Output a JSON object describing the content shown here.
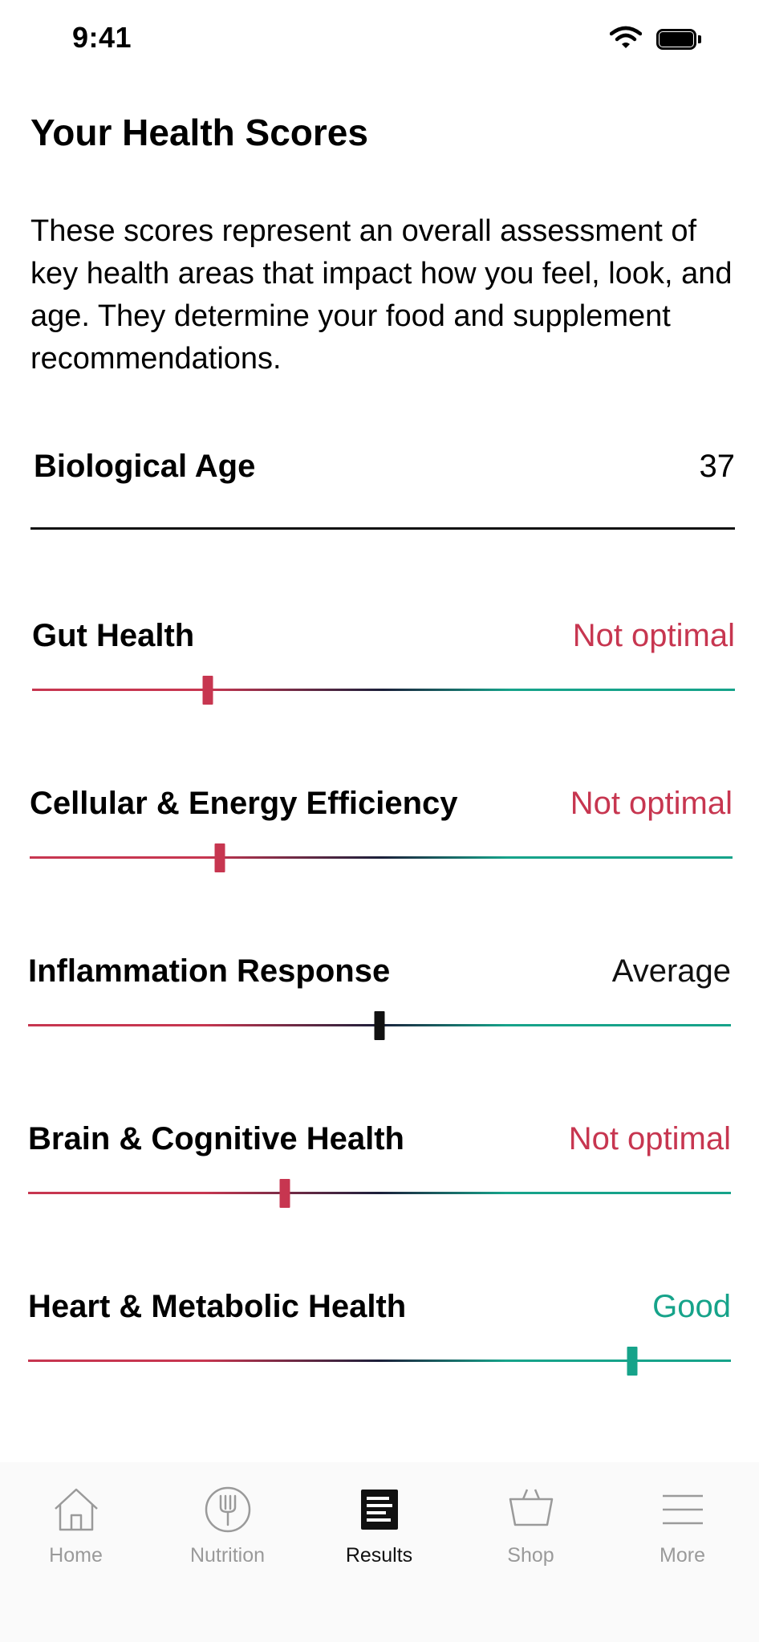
{
  "status_bar": {
    "time": "9:41"
  },
  "page": {
    "title": "Your Health Scores",
    "intro": "These scores represent an overall assessment of key health areas that impact how you feel, look, and age. They determine your food and supplement recommendations."
  },
  "biological_age": {
    "label": "Biological Age",
    "value": "37"
  },
  "scores": [
    {
      "label": "Gut Health",
      "status": "Not optimal",
      "level": 0.25,
      "status_color": "#c73650"
    },
    {
      "label": "Cellular & Energy Efficiency",
      "status": "Not optimal",
      "level": 0.27,
      "status_color": "#c73650"
    },
    {
      "label": "Inflammation Response",
      "status": "Average",
      "level": 0.5,
      "status_color": "#111111"
    },
    {
      "label": "Brain & Cognitive Health",
      "status": "Not optimal",
      "level": 0.365,
      "status_color": "#c73650"
    },
    {
      "label": "Heart & Metabolic Health",
      "status": "Good",
      "level": 0.86,
      "status_color": "#16a38a"
    }
  ],
  "tabbar": {
    "tabs": [
      {
        "label": "Home",
        "icon": "house-icon",
        "active": false
      },
      {
        "label": "Nutrition",
        "icon": "fork-icon",
        "active": false
      },
      {
        "label": "Results",
        "icon": "results-icon",
        "active": true
      },
      {
        "label": "Shop",
        "icon": "basket-icon",
        "active": false
      },
      {
        "label": "More",
        "icon": "menu-icon",
        "active": false
      }
    ]
  },
  "colors": {
    "not_optimal": "#c73650",
    "average": "#111111",
    "good": "#16a38a",
    "inactive_tab": "#9a9a9a"
  }
}
